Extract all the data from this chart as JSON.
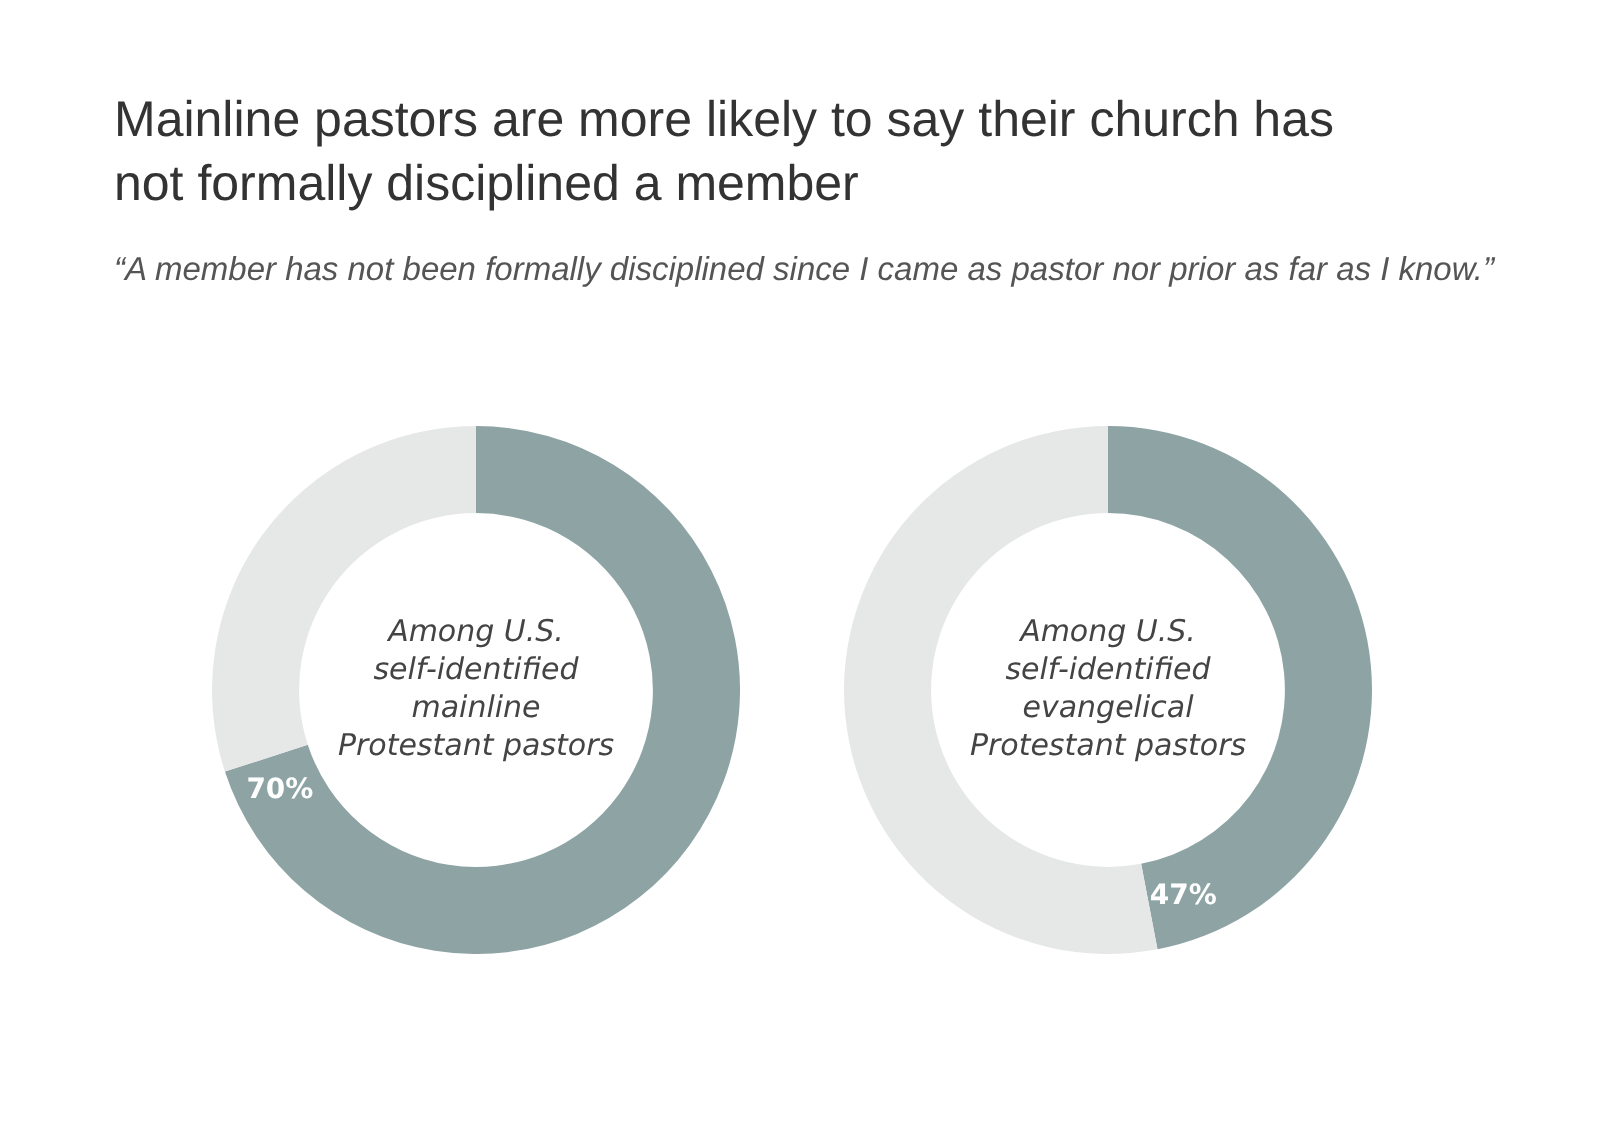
{
  "chart_data": [
    {
      "type": "donut",
      "title": "Mainline pastors are more likely to say their church has not formally disciplined a member",
      "subtitle": "“A member has not been formally disciplined since I came as pastor nor prior as far as I know.”",
      "categories": [
        null,
        null
      ],
      "values": [
        70,
        30
      ],
      "colors": [
        "#8ea3a4",
        "#e6e7e7"
      ],
      "value_labels": [
        "70%",
        null
      ],
      "annotations": [
        "Among U.S. self-identified mainline Protestant pastors"
      ],
      "legend": false
    },
    {
      "type": "donut",
      "categories": [
        null,
        null
      ],
      "values": [
        47,
        53
      ],
      "colors": [
        "#8ea3a4",
        "#e6e7e7"
      ],
      "value_labels": [
        "47%",
        null
      ],
      "annotations": [
        "Among U.S. self-identified evangelical Protestant pastors"
      ],
      "legend": false
    }
  ]
}
